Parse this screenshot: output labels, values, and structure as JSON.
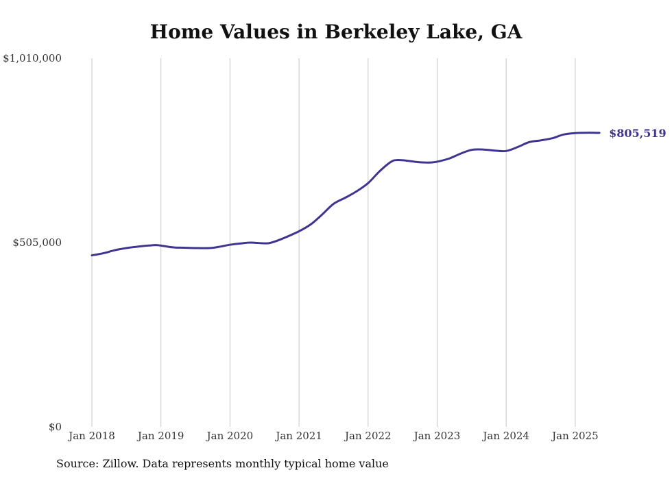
{
  "chart_data": {
    "type": "line",
    "title": "Home Values in Berkeley Lake, GA",
    "xlabel": "",
    "ylabel": "",
    "ylim": [
      0,
      1010000
    ],
    "y_ticks": [
      0,
      505000,
      1010000
    ],
    "y_tick_labels": [
      "$0",
      "$505,000",
      "$1,010,000"
    ],
    "x_ticks": [
      2018,
      2019,
      2020,
      2021,
      2022,
      2023,
      2024,
      2025
    ],
    "x_tick_labels": [
      "Jan 2018",
      "Jan 2019",
      "Jan 2020",
      "Jan 2021",
      "Jan 2022",
      "Jan 2023",
      "Jan 2024",
      "Jan 2025"
    ],
    "grid": "vertical",
    "series": [
      {
        "color": "#3f3590",
        "x": [
          2018.0,
          2018.17,
          2018.33,
          2018.5,
          2018.67,
          2018.83,
          2018.95,
          2019.17,
          2019.33,
          2019.5,
          2019.7,
          2019.83,
          2020.0,
          2020.17,
          2020.3,
          2020.5,
          2020.6,
          2020.75,
          2021.0,
          2021.17,
          2021.33,
          2021.5,
          2021.67,
          2021.83,
          2022.0,
          2022.17,
          2022.33,
          2022.42,
          2022.58,
          2022.75,
          2022.95,
          2023.17,
          2023.33,
          2023.5,
          2023.67,
          2023.83,
          2024.0,
          2024.17,
          2024.33,
          2024.5,
          2024.67,
          2024.83,
          2025.0,
          2025.17,
          2025.35
        ],
        "values": [
          470000,
          476000,
          484000,
          490000,
          494000,
          497000,
          498000,
          492000,
          491000,
          490000,
          490000,
          493000,
          499000,
          503000,
          505000,
          503000,
          505000,
          515000,
          536000,
          555000,
          581000,
          611000,
          628000,
          645000,
          668000,
          701000,
          726000,
          731000,
          729000,
          725000,
          725000,
          735000,
          748000,
          759000,
          760000,
          757000,
          756000,
          767000,
          780000,
          785000,
          791000,
          801000,
          805000,
          806000,
          805519
        ]
      }
    ],
    "annotations": [
      {
        "text": "$805,519",
        "x": 2025.35,
        "y": 805519
      }
    ]
  },
  "source_note": "Source: Zillow. Data represents monthly typical home value"
}
